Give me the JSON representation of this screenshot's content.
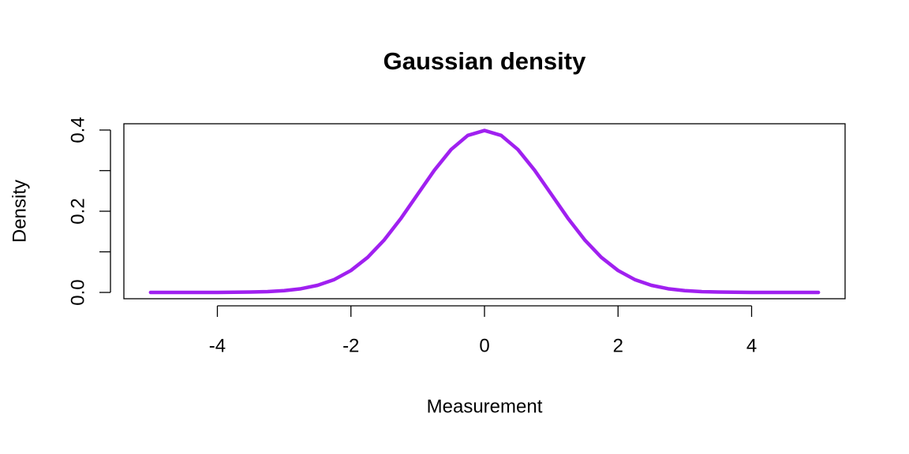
{
  "chart_data": {
    "type": "line",
    "title": "Gaussian density",
    "x_label": "Measurement",
    "y_label": "Density",
    "x": [
      -5,
      -4.75,
      -4.5,
      -4.25,
      -4,
      -3.75,
      -3.5,
      -3.25,
      -3,
      -2.75,
      -2.5,
      -2.25,
      -2,
      -1.75,
      -1.5,
      -1.25,
      -1,
      -0.75,
      -0.5,
      -0.25,
      0,
      0.25,
      0.5,
      0.75,
      1,
      1.25,
      1.5,
      1.75,
      2,
      2.25,
      2.5,
      2.75,
      3,
      3.25,
      3.5,
      3.75,
      4,
      4.25,
      4.5,
      4.75,
      5
    ],
    "values": [
      0,
      0,
      0,
      0,
      0.0001,
      0.0004,
      0.0009,
      0.002,
      0.0044,
      0.0091,
      0.0175,
      0.0317,
      0.054,
      0.0863,
      0.1295,
      0.1826,
      0.242,
      0.3011,
      0.3521,
      0.3867,
      0.3989,
      0.3867,
      0.3521,
      0.3011,
      0.242,
      0.1826,
      0.1295,
      0.0863,
      0.054,
      0.0317,
      0.0175,
      0.0091,
      0.0044,
      0.002,
      0.0009,
      0.0004,
      0.0001,
      0,
      0,
      0,
      0
    ],
    "color": "#a020f0",
    "xlim": [
      -5.4,
      5.4
    ],
    "ylim": [
      -0.0155,
      0.4155
    ],
    "xticks": [
      -4,
      -2,
      0,
      2,
      4
    ],
    "yticks": [
      {
        "value": 0,
        "label": "0.0"
      },
      0.2,
      0.4
    ],
    "yticks_minor": [
      0.1,
      0.3
    ]
  }
}
